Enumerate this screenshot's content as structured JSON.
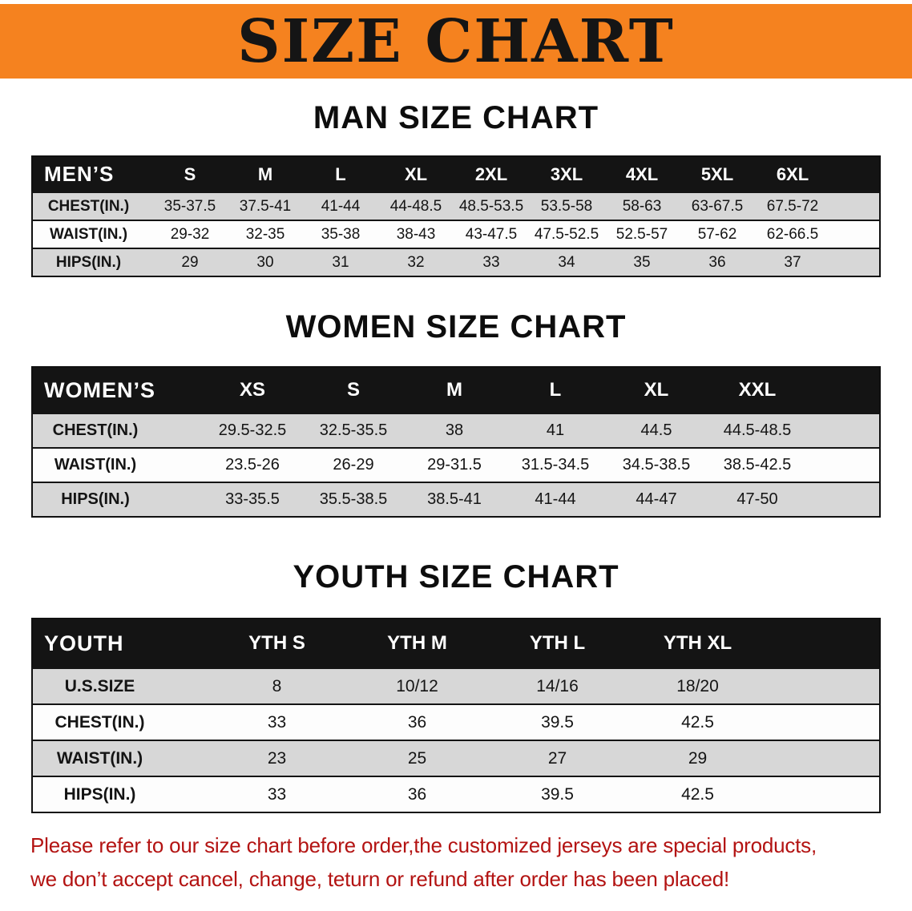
{
  "banner": {
    "title": "SIZE CHART"
  },
  "theme": {
    "banner_bg": "#f5821f",
    "title_color": "#151515",
    "table_header_bg": "#141414",
    "row_stripe": "#d7d7d7",
    "note_color": "#b31312"
  },
  "sections": [
    {
      "id": "men",
      "heading": "MAN SIZE CHART",
      "table": {
        "header": [
          "MEN’S",
          "S",
          "M",
          "L",
          "XL",
          "2XL",
          "3XL",
          "4XL",
          "5XL",
          "6XL"
        ],
        "rows": [
          [
            "CHEST(IN.)",
            "35-37.5",
            "37.5-41",
            "41-44",
            "44-48.5",
            "48.5-53.5",
            "53.5-58",
            "58-63",
            "63-67.5",
            "67.5-72"
          ],
          [
            "WAIST(IN.)",
            "29-32",
            "32-35",
            "35-38",
            "38-43",
            "43-47.5",
            "47.5-52.5",
            "52.5-57",
            "57-62",
            "62-66.5"
          ],
          [
            "HIPS(IN.)",
            "29",
            "30",
            "31",
            "32",
            "33",
            "34",
            "35",
            "36",
            "37"
          ]
        ]
      }
    },
    {
      "id": "women",
      "heading": "WOMEN SIZE CHART",
      "table": {
        "header": [
          "WOMEN’S",
          "XS",
          "S",
          "M",
          "L",
          "XL",
          "XXL"
        ],
        "rows": [
          [
            "CHEST(IN.)",
            "29.5-32.5",
            "32.5-35.5",
            "38",
            "41",
            "44.5",
            "44.5-48.5"
          ],
          [
            "WAIST(IN.)",
            "23.5-26",
            "26-29",
            "29-31.5",
            "31.5-34.5",
            "34.5-38.5",
            "38.5-42.5"
          ],
          [
            "HIPS(IN.)",
            "33-35.5",
            "35.5-38.5",
            "38.5-41",
            "41-44",
            "44-47",
            "47-50"
          ]
        ]
      }
    },
    {
      "id": "youth",
      "heading": "YOUTH SIZE CHART",
      "table": {
        "header": [
          "YOUTH",
          "YTH S",
          "YTH M",
          "YTH L",
          "YTH XL"
        ],
        "rows": [
          [
            "U.S.SIZE",
            "8",
            "10/12",
            "14/16",
            "18/20"
          ],
          [
            "CHEST(IN.)",
            "33",
            "36",
            "39.5",
            "42.5"
          ],
          [
            "WAIST(IN.)",
            "23",
            "25",
            "27",
            "29"
          ],
          [
            "HIPS(IN.)",
            "33",
            "36",
            "39.5",
            "42.5"
          ]
        ]
      }
    }
  ],
  "footer_note": {
    "line1": "Please refer to our size chart before order,the customized jerseys are special products,",
    "line2": "we don’t accept cancel, change, teturn or refund after order has been placed!"
  }
}
